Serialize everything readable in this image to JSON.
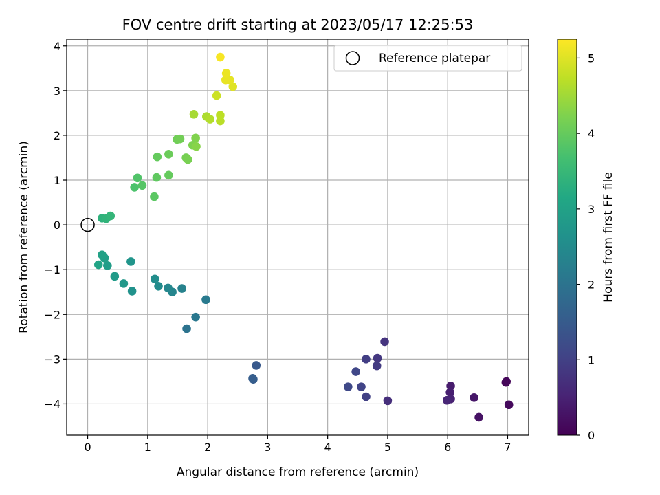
{
  "chart_data": {
    "type": "scatter",
    "title": "FOV centre drift starting at 2023/05/17 12:25:53",
    "xlabel": "Angular distance from reference (arcmin)",
    "ylabel": "Rotation from reference (arcmin)",
    "xlim": [
      -0.35,
      7.35
    ],
    "ylim": [
      -4.7,
      4.15
    ],
    "xticks": [
      0,
      1,
      2,
      3,
      4,
      5,
      6,
      7
    ],
    "yticks": [
      -4,
      -3,
      -2,
      -1,
      0,
      1,
      2,
      3,
      4
    ],
    "grid": true,
    "legend": {
      "position": "top-right",
      "entries": [
        "Reference platepar"
      ]
    },
    "reference_point": {
      "x": 0,
      "y": 0
    },
    "colorbar": {
      "label": "Hours from first FF file",
      "min": 0,
      "max": 5.25,
      "ticks": [
        0,
        1,
        2,
        3,
        4,
        5
      ],
      "colormap": "viridis"
    },
    "points": [
      {
        "x": 6.97,
        "y": -3.52,
        "c": 0.05
      },
      {
        "x": 6.98,
        "y": -3.5,
        "c": 0.08
      },
      {
        "x": 7.02,
        "y": -4.02,
        "c": 0.12
      },
      {
        "x": 6.52,
        "y": -4.3,
        "c": 0.25
      },
      {
        "x": 6.44,
        "y": -3.86,
        "c": 0.32
      },
      {
        "x": 6.05,
        "y": -3.6,
        "c": 0.4
      },
      {
        "x": 6.04,
        "y": -3.74,
        "c": 0.45
      },
      {
        "x": 6.05,
        "y": -3.89,
        "c": 0.5
      },
      {
        "x": 5.99,
        "y": -3.92,
        "c": 0.55
      },
      {
        "x": 5.0,
        "y": -3.93,
        "c": 0.7
      },
      {
        "x": 4.95,
        "y": -2.61,
        "c": 0.78
      },
      {
        "x": 4.83,
        "y": -2.98,
        "c": 0.85
      },
      {
        "x": 4.82,
        "y": -3.15,
        "c": 0.9
      },
      {
        "x": 4.64,
        "y": -3.0,
        "c": 0.95
      },
      {
        "x": 4.64,
        "y": -3.84,
        "c": 1.0
      },
      {
        "x": 4.56,
        "y": -3.62,
        "c": 1.05
      },
      {
        "x": 4.47,
        "y": -3.28,
        "c": 1.1
      },
      {
        "x": 4.34,
        "y": -3.62,
        "c": 1.15
      },
      {
        "x": 2.81,
        "y": -3.14,
        "c": 1.45
      },
      {
        "x": 2.76,
        "y": -3.45,
        "c": 1.52
      },
      {
        "x": 2.75,
        "y": -3.43,
        "c": 1.55
      },
      {
        "x": 1.65,
        "y": -2.32,
        "c": 2.0
      },
      {
        "x": 1.8,
        "y": -2.06,
        "c": 2.08
      },
      {
        "x": 1.97,
        "y": -1.67,
        "c": 2.15
      },
      {
        "x": 1.57,
        "y": -1.42,
        "c": 2.3
      },
      {
        "x": 1.41,
        "y": -1.5,
        "c": 2.38
      },
      {
        "x": 1.34,
        "y": -1.41,
        "c": 2.42
      },
      {
        "x": 1.18,
        "y": -1.37,
        "c": 2.5
      },
      {
        "x": 1.12,
        "y": -1.21,
        "c": 2.55
      },
      {
        "x": 0.74,
        "y": -1.48,
        "c": 2.65
      },
      {
        "x": 0.72,
        "y": -0.82,
        "c": 2.72
      },
      {
        "x": 0.6,
        "y": -1.31,
        "c": 2.78
      },
      {
        "x": 0.45,
        "y": -1.15,
        "c": 2.85
      },
      {
        "x": 0.33,
        "y": -0.91,
        "c": 2.9
      },
      {
        "x": 0.28,
        "y": -0.74,
        "c": 2.95
      },
      {
        "x": 0.24,
        "y": -0.67,
        "c": 3.0
      },
      {
        "x": 0.18,
        "y": -0.89,
        "c": 3.05
      },
      {
        "x": 0.24,
        "y": 0.15,
        "c": 3.35
      },
      {
        "x": 0.31,
        "y": 0.14,
        "c": 3.4
      },
      {
        "x": 0.38,
        "y": 0.2,
        "c": 3.45
      },
      {
        "x": 0.78,
        "y": 0.84,
        "c": 3.75
      },
      {
        "x": 0.83,
        "y": 1.05,
        "c": 3.8
      },
      {
        "x": 0.91,
        "y": 0.88,
        "c": 3.85
      },
      {
        "x": 1.11,
        "y": 0.63,
        "c": 3.9
      },
      {
        "x": 1.15,
        "y": 1.06,
        "c": 3.95
      },
      {
        "x": 1.16,
        "y": 1.52,
        "c": 4.0
      },
      {
        "x": 1.35,
        "y": 1.11,
        "c": 4.0
      },
      {
        "x": 1.35,
        "y": 1.58,
        "c": 4.05
      },
      {
        "x": 1.49,
        "y": 1.91,
        "c": 4.1
      },
      {
        "x": 1.54,
        "y": 1.92,
        "c": 4.12
      },
      {
        "x": 1.64,
        "y": 1.5,
        "c": 4.15
      },
      {
        "x": 1.67,
        "y": 1.46,
        "c": 4.18
      },
      {
        "x": 1.75,
        "y": 1.78,
        "c": 4.22
      },
      {
        "x": 1.8,
        "y": 1.94,
        "c": 4.25
      },
      {
        "x": 1.81,
        "y": 1.75,
        "c": 4.3
      },
      {
        "x": 1.77,
        "y": 2.47,
        "c": 4.55
      },
      {
        "x": 1.98,
        "y": 2.42,
        "c": 4.6
      },
      {
        "x": 2.04,
        "y": 2.36,
        "c": 4.65
      },
      {
        "x": 2.21,
        "y": 2.32,
        "c": 4.7
      },
      {
        "x": 2.21,
        "y": 2.45,
        "c": 4.72
      },
      {
        "x": 2.15,
        "y": 2.89,
        "c": 4.85
      },
      {
        "x": 2.42,
        "y": 3.09,
        "c": 5.0
      },
      {
        "x": 2.37,
        "y": 3.24,
        "c": 5.05
      },
      {
        "x": 2.3,
        "y": 3.24,
        "c": 5.08
      },
      {
        "x": 2.31,
        "y": 3.39,
        "c": 5.1
      },
      {
        "x": 2.21,
        "y": 3.75,
        "c": 5.2
      }
    ]
  }
}
